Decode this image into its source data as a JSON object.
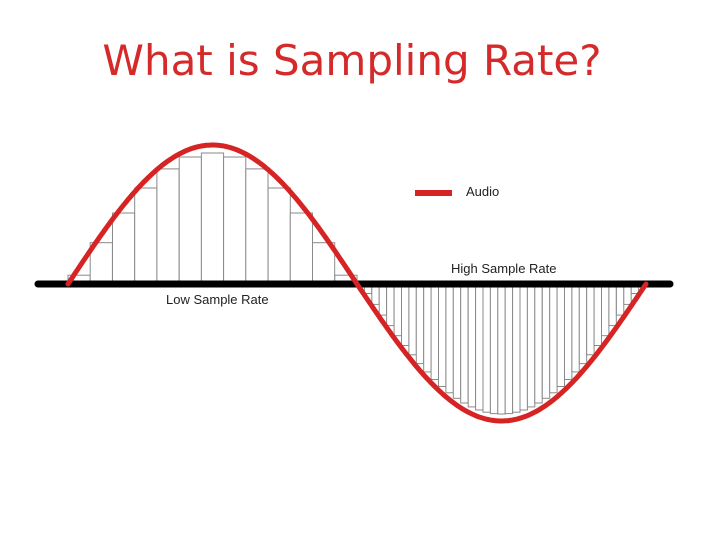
{
  "slide": {
    "title": "What is Sampling Rate?"
  },
  "diagram": {
    "legend_label": "Audio",
    "low_rate_label": "Low Sample Rate",
    "high_rate_label": "High Sample Rate",
    "low_rate_samples": 13,
    "high_rate_samples": 39
  },
  "colors": {
    "title": "#d42a2a",
    "wave": "#d62424",
    "axis": "#000000",
    "sample_bar": "#8a8a8a"
  }
}
